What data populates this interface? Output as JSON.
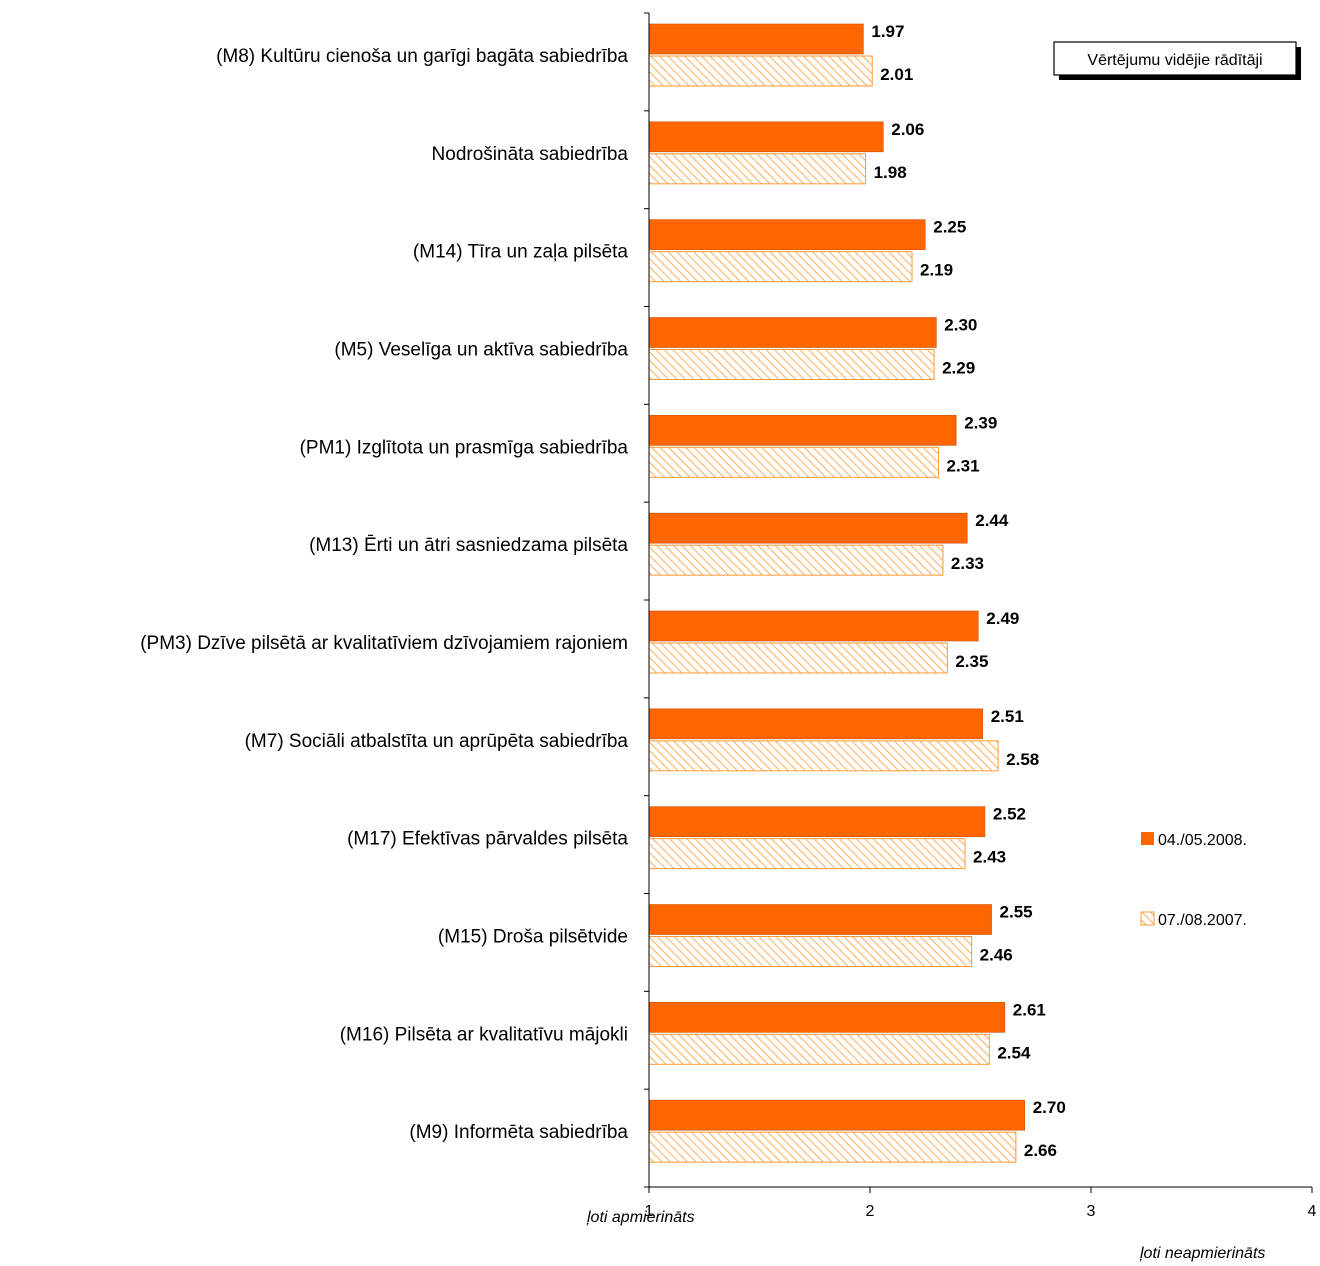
{
  "chart_data": {
    "type": "bar",
    "orientation": "horizontal",
    "title": "Vērtējumu vidējie rādītāji",
    "categories": [
      "(M8) Kultūru cienoša un garīgi bagāta sabiedrība",
      "Nodrošināta sabiedrība",
      "(M14) Tīra un zaļa pilsēta",
      "(M5) Veselīga un aktīva sabiedrība",
      "(PM1) Izglītota un prasmīga sabiedrība",
      "(M13) Ērti un ātri sasniedzama pilsēta",
      "(PM3) Dzīve pilsētā ar kvalitatīviem dzīvojamiem rajoniem",
      "(M7) Sociāli atbalstīta un aprūpēta sabiedrība",
      "(M17) Efektīvas pārvaldes pilsēta",
      "(M15) Droša pilsētvide",
      "(M16) Pilsēta ar kvalitatīvu mājokli",
      "(M9) Informēta sabiedrība"
    ],
    "series": [
      {
        "name": "04./05.2008.",
        "color": "#ff6600",
        "pattern": "solid",
        "values": [
          1.97,
          2.06,
          2.25,
          2.3,
          2.39,
          2.44,
          2.49,
          2.51,
          2.52,
          2.55,
          2.61,
          2.7
        ],
        "labels": [
          "1.97",
          "2.06",
          "2.25",
          "2.30",
          "2.39",
          "2.44",
          "2.49",
          "2.51",
          "2.52",
          "2.55",
          "2.61",
          "2.70"
        ]
      },
      {
        "name": "07./08.2007.",
        "color": "#ff9933",
        "pattern": "hatched",
        "values": [
          2.01,
          1.98,
          2.19,
          2.29,
          2.31,
          2.33,
          2.35,
          2.58,
          2.43,
          2.46,
          2.54,
          2.66
        ],
        "labels": [
          "2.01",
          "1.98",
          "2.19",
          "2.29",
          "2.31",
          "2.33",
          "2.35",
          "2.58",
          "2.43",
          "2.46",
          "2.54",
          "2.66"
        ]
      }
    ],
    "xlim": [
      1,
      4
    ],
    "xticks": [
      "1",
      "2",
      "3",
      "4"
    ],
    "x_min_note": "ļoti apmierināts",
    "x_max_note": "ļoti neapmierināts",
    "legend_position": "right",
    "grid": false
  }
}
